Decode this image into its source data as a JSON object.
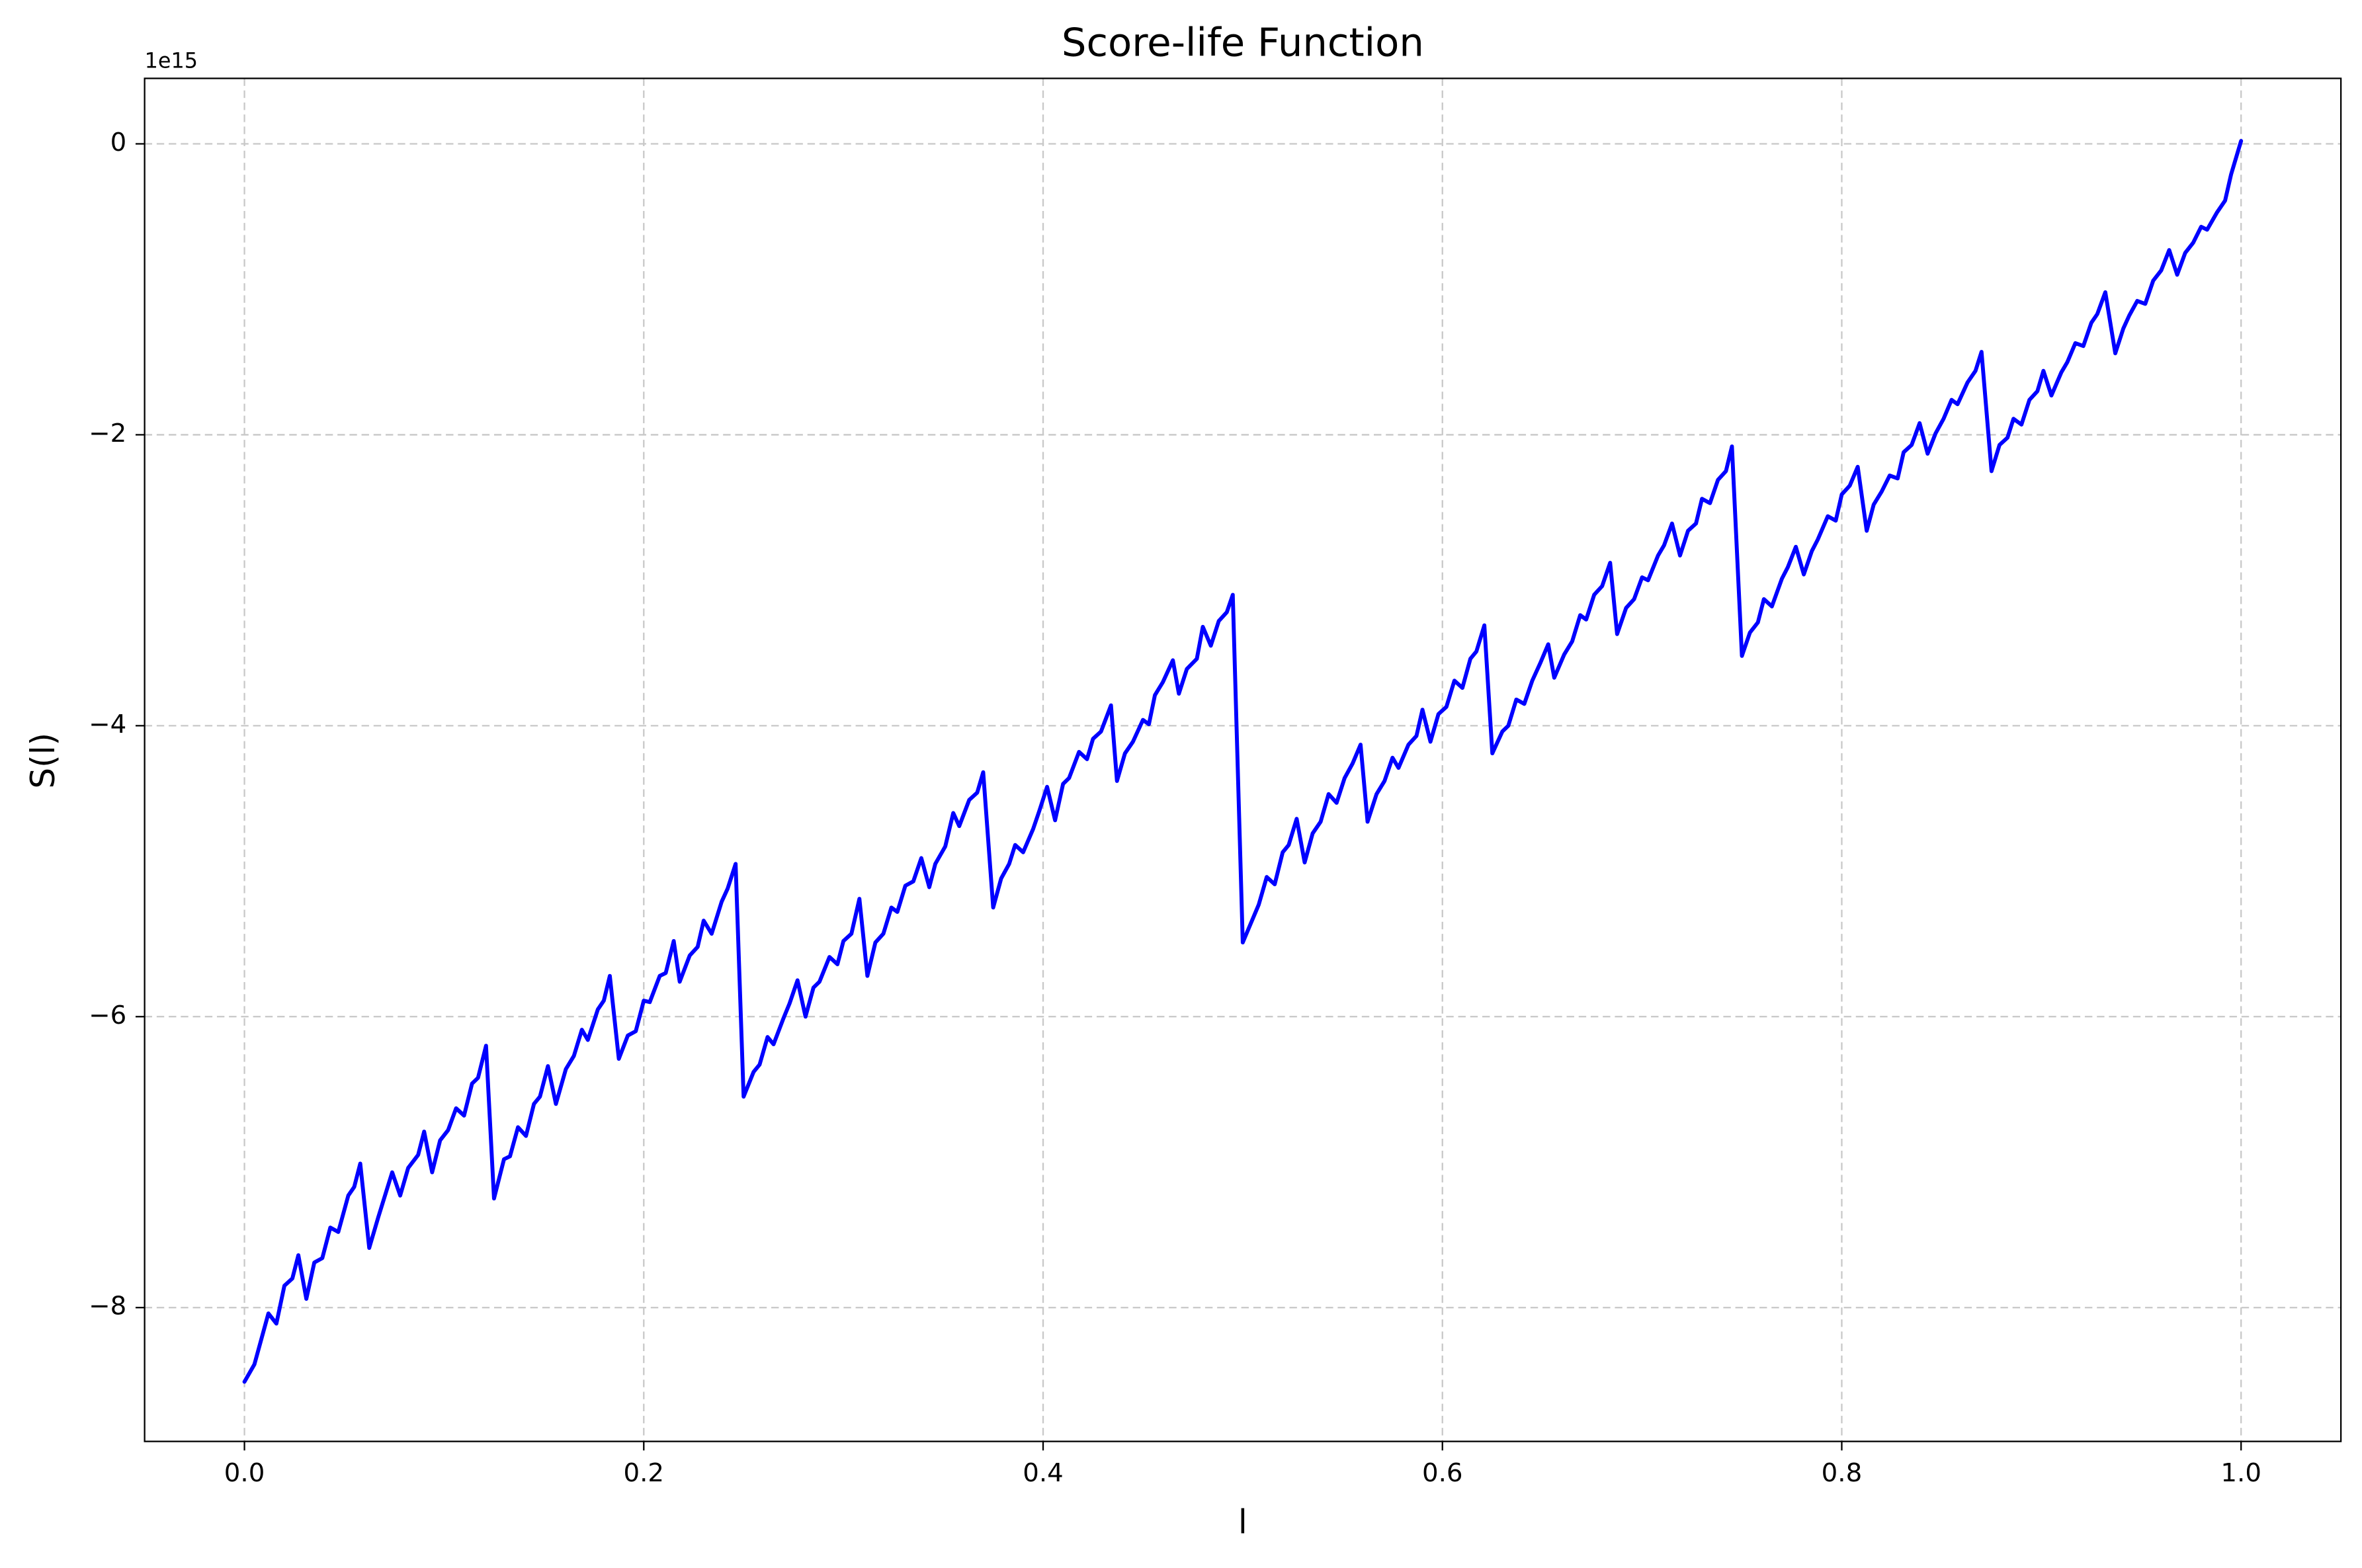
{
  "chart_data": {
    "type": "line",
    "title": "Score-life Function",
    "xlabel": "l",
    "ylabel": "S(l)",
    "y_offset_label": "1e15",
    "color": "#0000ff",
    "grid": true,
    "xlim": [
      -0.05,
      1.05
    ],
    "ylim": [
      -8.92,
      0.45
    ],
    "xticks": [
      {
        "value": 0,
        "label": "0.0"
      },
      0.2,
      0.4,
      0.6,
      0.8,
      {
        "value": 1,
        "label": "1.0"
      }
    ],
    "yticks": [
      {
        "value": -8,
        "label": "−8"
      },
      {
        "value": -6,
        "label": "−6"
      },
      {
        "value": -4,
        "label": "−4"
      },
      {
        "value": -2,
        "label": "−2"
      },
      0
    ],
    "x": [
      0,
      0.005,
      0.012,
      0.016,
      0.02,
      0.024,
      0.027,
      0.031,
      0.035,
      0.039,
      0.043,
      0.047,
      0.052,
      0.055,
      0.058,
      0.0625,
      0.067,
      0.074,
      0.078,
      0.082,
      0.087,
      0.09,
      0.094,
      0.098,
      0.102,
      0.106,
      0.11,
      0.114,
      0.117,
      0.121,
      0.125,
      0.13,
      0.133,
      0.137,
      0.141,
      0.145,
      0.148,
      0.152,
      0.156,
      0.161,
      0.165,
      0.169,
      0.172,
      0.177,
      0.18,
      0.183,
      0.1875,
      0.192,
      0.196,
      0.2,
      0.203,
      0.208,
      0.211,
      0.215,
      0.218,
      0.223,
      0.227,
      0.23,
      0.234,
      0.239,
      0.242,
      0.246,
      0.25,
      0.255,
      0.258,
      0.262,
      0.265,
      0.27,
      0.273,
      0.277,
      0.281,
      0.285,
      0.288,
      0.293,
      0.297,
      0.3,
      0.304,
      0.308,
      0.312,
      0.316,
      0.32,
      0.324,
      0.327,
      0.331,
      0.335,
      0.339,
      0.343,
      0.346,
      0.351,
      0.355,
      0.358,
      0.363,
      0.367,
      0.37,
      0.375,
      0.379,
      0.383,
      0.386,
      0.39,
      0.395,
      0.398,
      0.402,
      0.406,
      0.41,
      0.413,
      0.418,
      0.422,
      0.425,
      0.429,
      0.434,
      0.437,
      0.441,
      0.445,
      0.45,
      0.453,
      0.456,
      0.46,
      0.465,
      0.468,
      0.472,
      0.477,
      0.48,
      0.484,
      0.488,
      0.492,
      0.495,
      0.5,
      0.504,
      0.508,
      0.512,
      0.516,
      0.52,
      0.523,
      0.527,
      0.531,
      0.535,
      0.539,
      0.543,
      0.547,
      0.551,
      0.555,
      0.559,
      0.5625,
      0.567,
      0.571,
      0.575,
      0.578,
      0.583,
      0.587,
      0.59,
      0.594,
      0.598,
      0.602,
      0.606,
      0.61,
      0.614,
      0.617,
      0.621,
      0.625,
      0.63,
      0.633,
      0.637,
      0.641,
      0.645,
      0.649,
      0.653,
      0.656,
      0.661,
      0.665,
      0.669,
      0.672,
      0.676,
      0.68,
      0.684,
      0.6875,
      0.692,
      0.696,
      0.7,
      0.703,
      0.708,
      0.711,
      0.715,
      0.719,
      0.723,
      0.727,
      0.73,
      0.734,
      0.738,
      0.742,
      0.745,
      0.75,
      0.754,
      0.758,
      0.761,
      0.765,
      0.77,
      0.773,
      0.777,
      0.781,
      0.785,
      0.788,
      0.793,
      0.797,
      0.8,
      0.804,
      0.808,
      0.8125,
      0.816,
      0.82,
      0.824,
      0.828,
      0.831,
      0.835,
      0.839,
      0.843,
      0.847,
      0.851,
      0.855,
      0.858,
      0.863,
      0.867,
      0.87,
      0.875,
      0.879,
      0.883,
      0.886,
      0.89,
      0.894,
      0.898,
      0.901,
      0.905,
      0.91,
      0.913,
      0.917,
      0.921,
      0.925,
      0.928,
      0.932,
      0.937,
      0.941,
      0.944,
      0.948,
      0.952,
      0.956,
      0.96,
      0.964,
      0.968,
      0.972,
      0.976,
      0.98,
      0.983,
      0.988,
      0.992,
      0.995,
      1.0
    ],
    "values": [
      -8.51,
      -8.39,
      -8.04,
      -8.11,
      -7.85,
      -7.8,
      -7.64,
      -7.94,
      -7.69,
      -7.66,
      -7.45,
      -7.48,
      -7.23,
      -7.17,
      -7.01,
      -7.59,
      -7.38,
      -7.07,
      -7.23,
      -7.04,
      -6.95,
      -6.79,
      -7.07,
      -6.85,
      -6.78,
      -6.63,
      -6.68,
      -6.46,
      -6.42,
      -6.2,
      -7.25,
      -6.98,
      -6.96,
      -6.76,
      -6.82,
      -6.6,
      -6.55,
      -6.34,
      -6.6,
      -6.36,
      -6.27,
      -6.09,
      -6.16,
      -5.95,
      -5.89,
      -5.72,
      -6.29,
      -6.13,
      -6.1,
      -5.89,
      -5.9,
      -5.72,
      -5.7,
      -5.48,
      -5.76,
      -5.58,
      -5.52,
      -5.34,
      -5.43,
      -5.21,
      -5.12,
      -4.95,
      -6.55,
      -6.38,
      -6.33,
      -6.14,
      -6.19,
      -6.01,
      -5.91,
      -5.75,
      -6.0,
      -5.8,
      -5.76,
      -5.59,
      -5.64,
      -5.48,
      -5.43,
      -5.19,
      -5.72,
      -5.49,
      -5.43,
      -5.25,
      -5.28,
      -5.1,
      -5.07,
      -4.91,
      -5.11,
      -4.95,
      -4.83,
      -4.6,
      -4.69,
      -4.51,
      -4.46,
      -4.32,
      -5.25,
      -5.05,
      -4.95,
      -4.82,
      -4.87,
      -4.71,
      -4.59,
      -4.42,
      -4.65,
      -4.4,
      -4.36,
      -4.18,
      -4.23,
      -4.09,
      -4.04,
      -3.86,
      -4.38,
      -4.19,
      -4.11,
      -3.96,
      -3.99,
      -3.79,
      -3.7,
      -3.55,
      -3.78,
      -3.61,
      -3.54,
      -3.32,
      -3.45,
      -3.28,
      -3.22,
      -3.1,
      -5.49,
      -5.36,
      -5.23,
      -5.04,
      -5.09,
      -4.87,
      -4.82,
      -4.64,
      -4.94,
      -4.74,
      -4.66,
      -4.47,
      -4.53,
      -4.36,
      -4.26,
      -4.13,
      -4.66,
      -4.47,
      -4.38,
      -4.22,
      -4.29,
      -4.13,
      -4.07,
      -3.89,
      -4.11,
      -3.92,
      -3.87,
      -3.69,
      -3.74,
      -3.54,
      -3.49,
      -3.31,
      -4.19,
      -4.04,
      -4.0,
      -3.82,
      -3.85,
      -3.69,
      -3.57,
      -3.44,
      -3.67,
      -3.51,
      -3.42,
      -3.24,
      -3.27,
      -3.1,
      -3.04,
      -2.88,
      -3.37,
      -3.19,
      -3.13,
      -2.98,
      -3.0,
      -2.83,
      -2.76,
      -2.61,
      -2.83,
      -2.66,
      -2.61,
      -2.44,
      -2.47,
      -2.31,
      -2.25,
      -2.08,
      -3.52,
      -3.36,
      -3.29,
      -3.13,
      -3.18,
      -2.99,
      -2.91,
      -2.77,
      -2.96,
      -2.8,
      -2.72,
      -2.56,
      -2.59,
      -2.41,
      -2.35,
      -2.22,
      -2.66,
      -2.48,
      -2.39,
      -2.28,
      -2.3,
      -2.12,
      -2.07,
      -1.92,
      -2.13,
      -1.99,
      -1.89,
      -1.76,
      -1.79,
      -1.64,
      -1.56,
      -1.43,
      -2.25,
      -2.07,
      -2.02,
      -1.89,
      -1.93,
      -1.76,
      -1.7,
      -1.56,
      -1.73,
      -1.57,
      -1.5,
      -1.37,
      -1.39,
      -1.23,
      -1.17,
      -1.02,
      -1.44,
      -1.27,
      -1.18,
      -1.08,
      -1.1,
      -0.94,
      -0.87,
      -0.73,
      -0.9,
      -0.75,
      -0.68,
      -0.57,
      -0.59,
      -0.47,
      -0.39,
      -0.21,
      0.02
    ]
  }
}
